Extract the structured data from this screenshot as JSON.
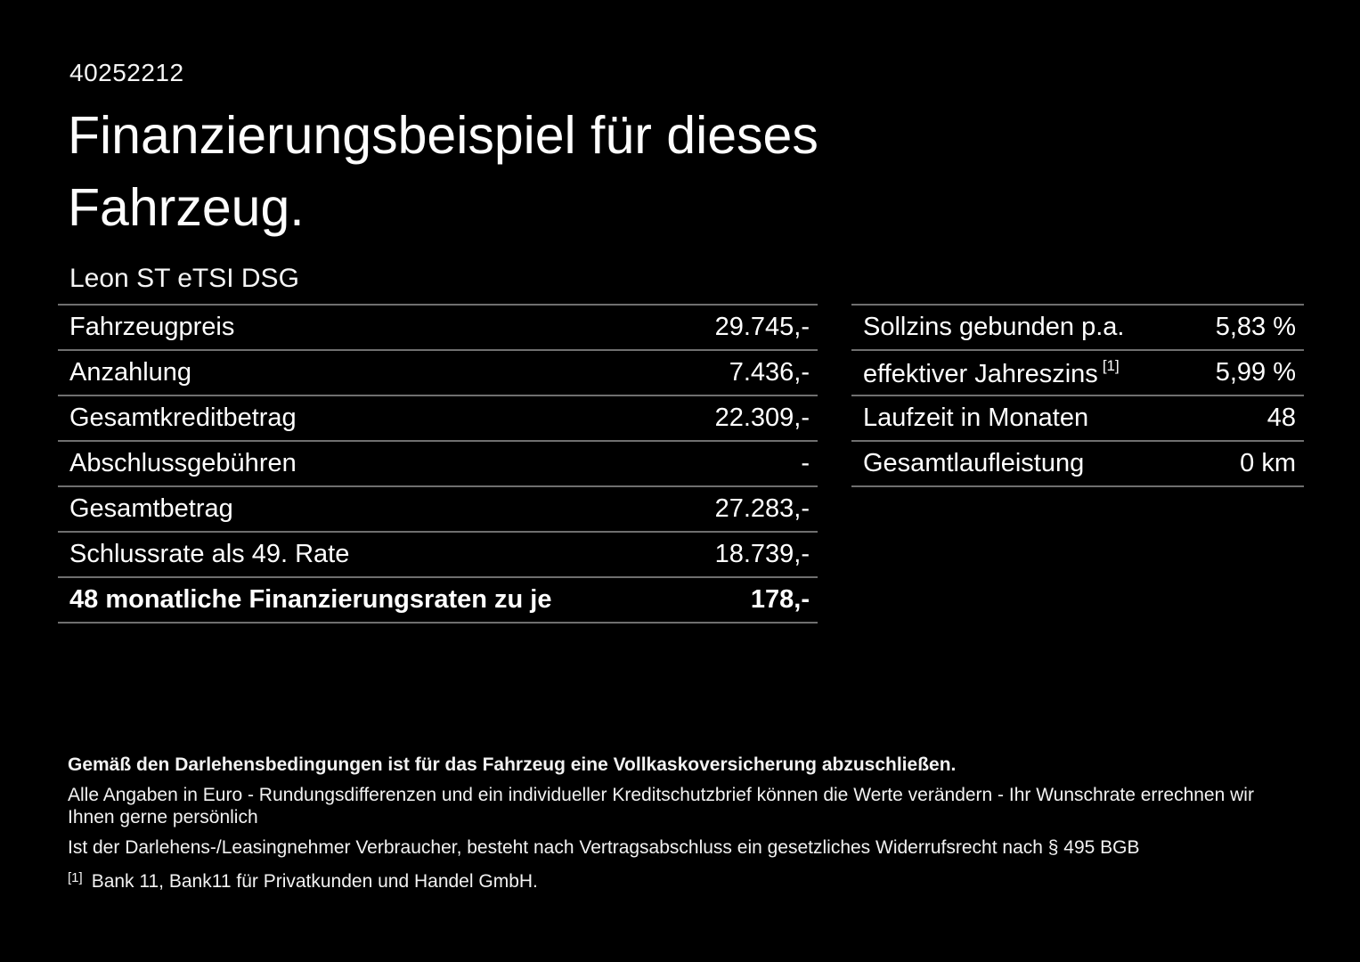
{
  "page": {
    "ref_number": "40252212",
    "title": "Finanzierungsbeispiel für dieses Fahrzeug.",
    "vehicle_model": "Leon ST eTSI DSG"
  },
  "finance_table": {
    "rows": [
      {
        "label": "Fahrzeugpreis",
        "value": "29.745,-"
      },
      {
        "label": "Anzahlung",
        "value": "7.436,-"
      },
      {
        "label": "Gesamtkreditbetrag",
        "value": "22.309,-"
      },
      {
        "label": "Abschlussgebühren",
        "value": "-"
      },
      {
        "label": "Gesamtbetrag",
        "value": "27.283,-"
      },
      {
        "label": "Schlussrate als 49. Rate",
        "value": "18.739,-"
      },
      {
        "label": "48 monatliche Finanzierungsraten zu je",
        "value": "178,-"
      }
    ]
  },
  "conditions_table": {
    "rows": [
      {
        "label": "Sollzins gebunden p.a.",
        "value": "5,83 %"
      },
      {
        "label": "effektiver Jahreszins",
        "sup": "[1]",
        "value": "5,99 %"
      },
      {
        "label": "Laufzeit in Monaten",
        "value": "48"
      },
      {
        "label": "Gesamtlaufleistung",
        "value": "0 km"
      }
    ]
  },
  "footer": {
    "insurance_note": "Gemäß den Darlehensbedingungen ist für das Fahrzeug eine Vollkaskoversicherung abzuschließen.",
    "disclaimer_line_1": "Alle Angaben in Euro - Rundungsdifferenzen und ein individueller Kreditschutzbrief können die Werte verändern - Ihr Wunschrate errechnen wir Ihnen gerne persönlich",
    "disclaimer_line_2": "Ist der Darlehens-/Leasingnehmer Verbraucher, besteht nach Vertragsabschluss ein gesetzliches Widerrufsrecht nach § 495 BGB",
    "footnote_marker": "[1]",
    "footnote_text": "Bank 11, Bank11 für Privatkunden und Handel GmbH."
  },
  "colors": {
    "background": "#000000",
    "text": "#ffffff",
    "divider": "#6f6f6f"
  }
}
